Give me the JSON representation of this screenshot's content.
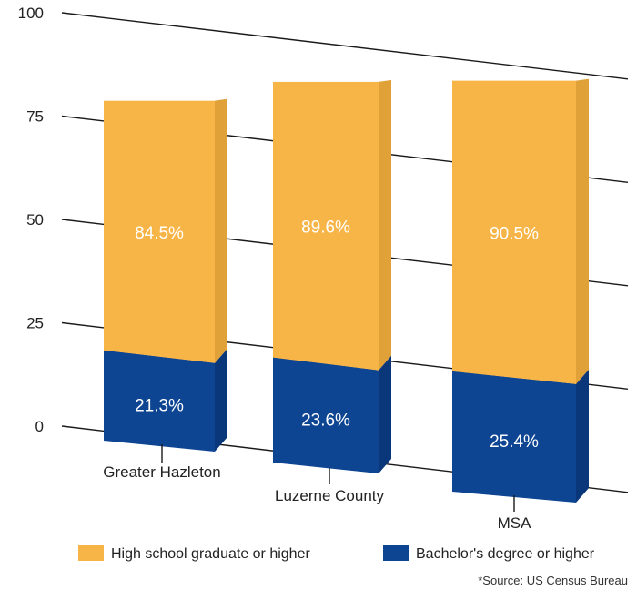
{
  "chart_data": {
    "type": "bar",
    "categories": [
      "Greater Hazleton",
      "Luzerne County",
      "MSA"
    ],
    "series": [
      {
        "name": "High school graduate or higher",
        "values": [
          84.5,
          89.6,
          90.5
        ],
        "labels": [
          "84.5%",
          "89.6%",
          "90.5%"
        ],
        "color": "#f7b548"
      },
      {
        "name": "Bachelor's degree or higher",
        "values": [
          21.3,
          23.6,
          25.4
        ],
        "labels": [
          "21.3%",
          "23.6%",
          "25.4%"
        ],
        "color": "#0d4593"
      }
    ],
    "yticks": [
      "0",
      "25",
      "50",
      "75",
      "100"
    ],
    "ylim": [
      0,
      100
    ],
    "grid": true,
    "legend_position": "bottom",
    "source": "*Source: US Census Bureau"
  }
}
